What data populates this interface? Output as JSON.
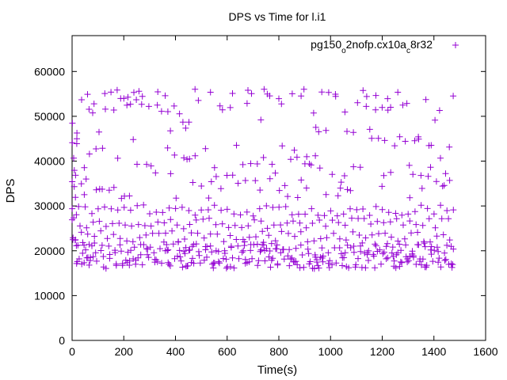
{
  "chart_data": {
    "type": "scatter",
    "title": "DPS vs Time for l.i1",
    "xlabel": "Time(s)",
    "ylabel": "DPS",
    "xlim": [
      0,
      1600
    ],
    "ylim": [
      0,
      68000
    ],
    "xticks": [
      0,
      200,
      400,
      600,
      800,
      1000,
      1200,
      1400,
      1600
    ],
    "yticks": [
      0,
      10000,
      20000,
      30000,
      40000,
      50000,
      60000
    ],
    "grid": false,
    "legend_position": "top-right",
    "marker": "+",
    "series": [
      {
        "name": "pg150_o2nofp.cx10a_c8r32",
        "legend_parts": [
          {
            "text": "pg150",
            "sub": false
          },
          {
            "text": "o",
            "sub": true
          },
          {
            "text": "2nofp.cx10a",
            "sub": false
          },
          {
            "text": "c",
            "sub": true
          },
          {
            "text": "8r32",
            "sub": false
          }
        ],
        "color": "#9400d3",
        "x_range": [
          0,
          1475
        ],
        "x_step": 5,
        "upper_band_values": [
          32000,
          34000,
          35500,
          37000,
          39000,
          41000,
          43000,
          45000,
          47000,
          49000,
          51000,
          52500,
          54000,
          55000,
          55500
        ],
        "lower_band_range": [
          14500,
          29000
        ],
        "lower_band_cycle_s": 25
      }
    ]
  }
}
